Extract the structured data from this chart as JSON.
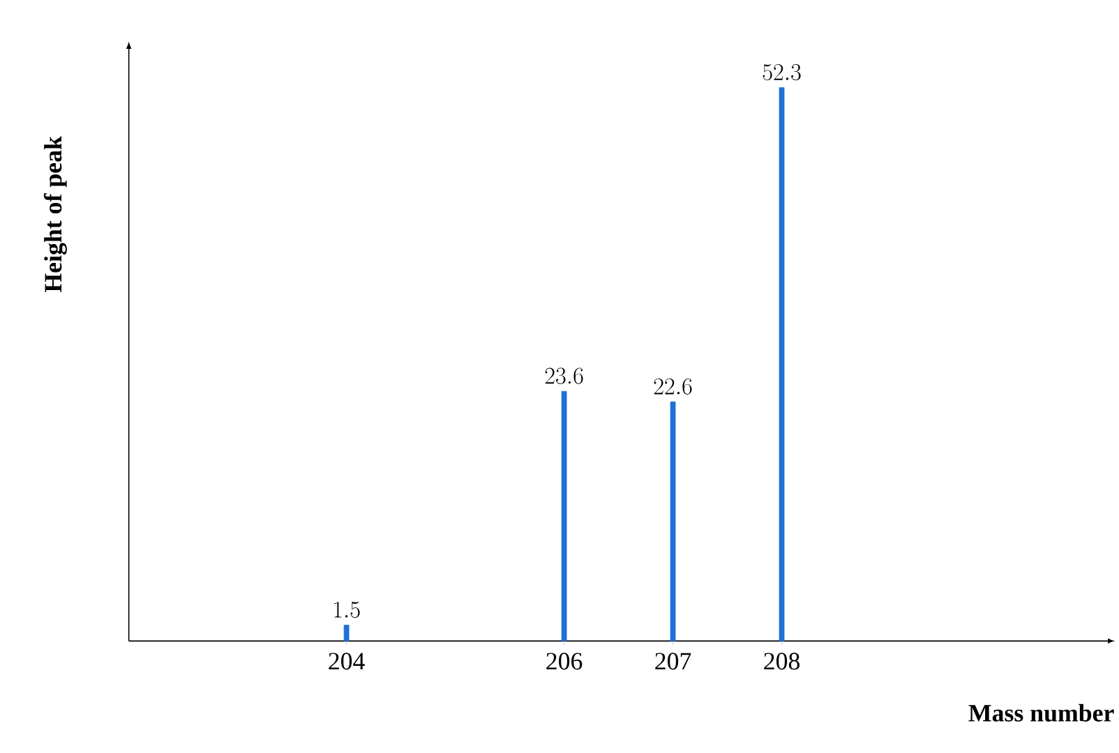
{
  "chart_data": {
    "type": "bar",
    "xlabel": "Mass number",
    "ylabel": "Height of peak",
    "x": [
      204,
      206,
      207,
      208
    ],
    "values": [
      1.5,
      23.6,
      22.6,
      52.3
    ],
    "color": "#1f6fd6",
    "xlim": [
      202,
      211
    ],
    "ylim": [
      0,
      56
    ],
    "xticks": [
      204,
      206,
      207,
      208
    ],
    "data_labels": true
  }
}
